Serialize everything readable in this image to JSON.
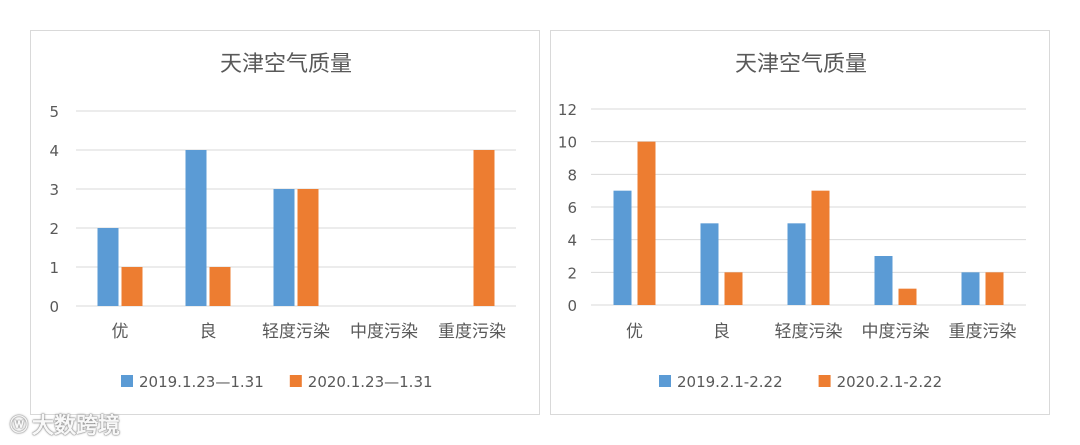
{
  "colors": {
    "series1": "#5b9bd5",
    "series2": "#ed7d31",
    "grid": "#d9d9d9",
    "text": "#595959"
  },
  "watermark": {
    "icon": "weibo-icon",
    "text": "大数跨境"
  },
  "chart_data": [
    {
      "type": "bar",
      "title": "天津空气质量",
      "categories": [
        "优",
        "良",
        "轻度污染",
        "中度污染",
        "重度污染"
      ],
      "series": [
        {
          "name": "2019.1.23—1.31",
          "values": [
            2,
            4,
            3,
            0,
            0
          ]
        },
        {
          "name": "2020.1.23—1.31",
          "values": [
            1,
            1,
            3,
            0,
            4
          ]
        }
      ],
      "ylim": [
        0,
        5
      ],
      "yticks": [
        0,
        1,
        2,
        3,
        4,
        5
      ],
      "grid": true,
      "legend": "bottom"
    },
    {
      "type": "bar",
      "title": "天津空气质量",
      "categories": [
        "优",
        "良",
        "轻度污染",
        "中度污染",
        "重度污染"
      ],
      "series": [
        {
          "name": "2019.2.1-2.22",
          "values": [
            7,
            5,
            5,
            3,
            2
          ]
        },
        {
          "name": "2020.2.1-2.22",
          "values": [
            10,
            2,
            7,
            1,
            2
          ]
        }
      ],
      "ylim": [
        0,
        12
      ],
      "yticks": [
        0,
        2,
        4,
        6,
        8,
        10,
        12
      ],
      "grid": true,
      "legend": "bottom"
    }
  ]
}
